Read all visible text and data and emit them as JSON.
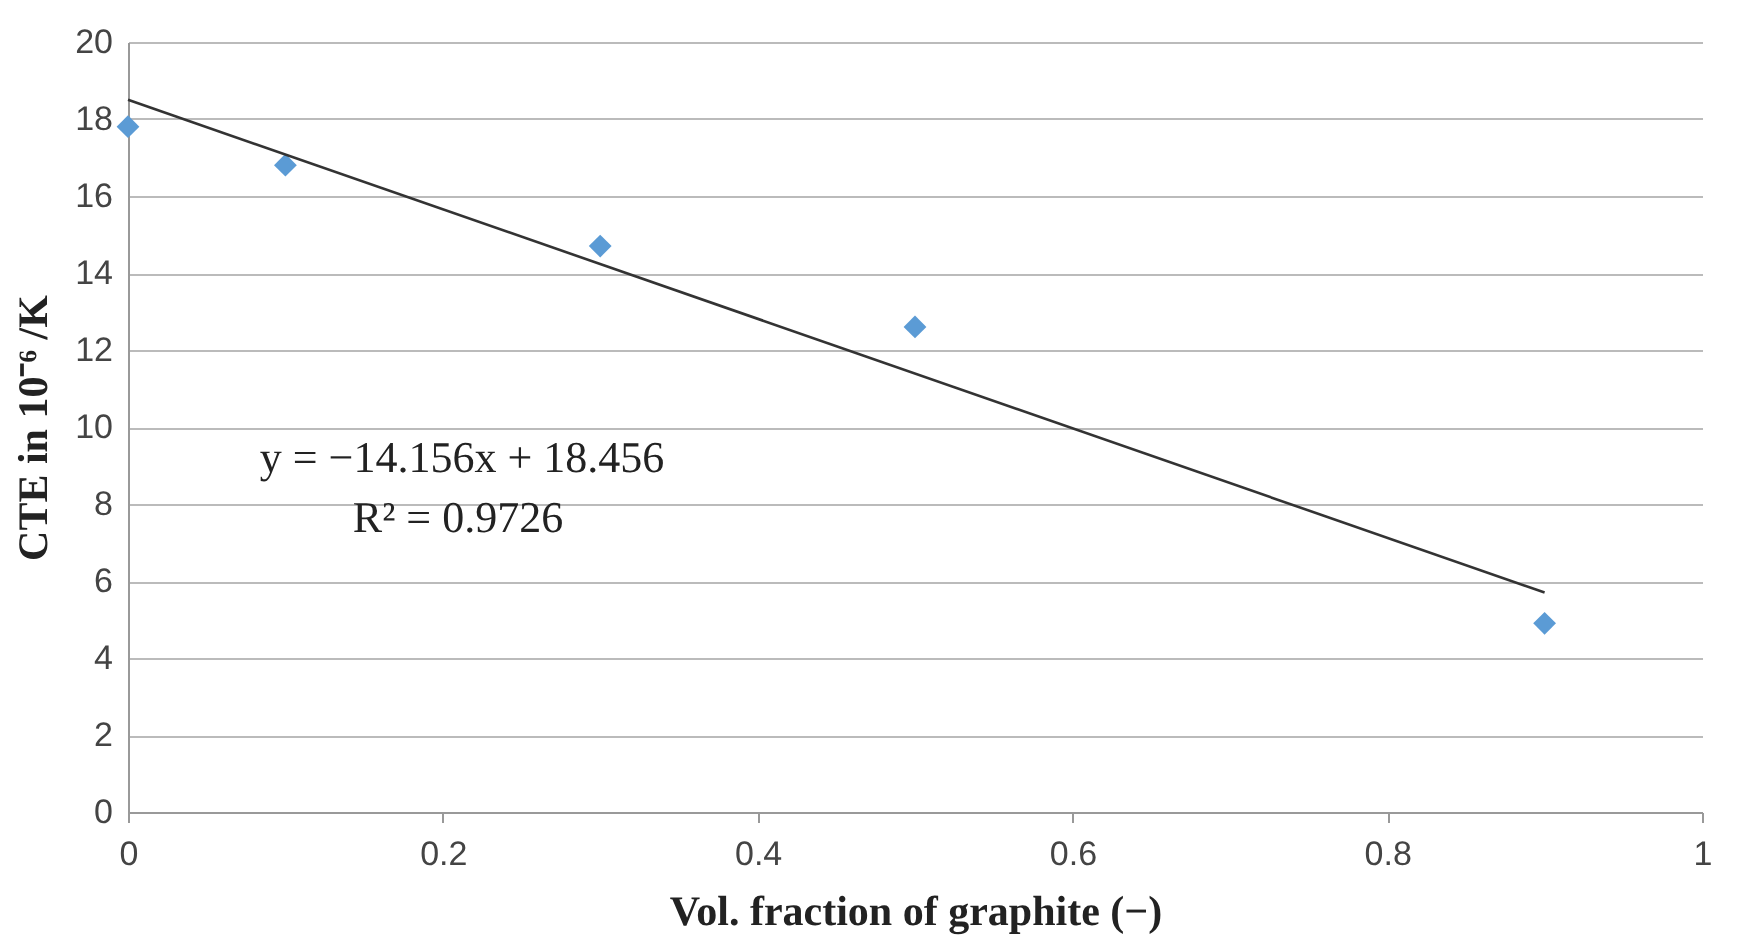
{
  "chart_data": {
    "type": "scatter",
    "xlabel": "Vol. fraction of graphite (−)",
    "ylabel": "CTE in 10⁻⁶ /K",
    "xlim": [
      0,
      1
    ],
    "xticks": [
      0,
      0.2,
      0.4,
      0.6,
      0.8,
      1
    ],
    "ylim": [
      0,
      20
    ],
    "yticks": [
      0,
      2,
      4,
      6,
      8,
      10,
      12,
      14,
      16,
      18,
      20
    ],
    "grid": "y",
    "series": [
      {
        "marker": "diamond",
        "color": "#5b9bd5",
        "x": [
          0,
          0.1,
          0.3,
          0.5,
          0.9
        ],
        "values": [
          17.8,
          16.8,
          14.7,
          12.6,
          4.9
        ]
      },
      {
        "type": "line",
        "color": "#333333",
        "x": [
          0,
          0.9
        ],
        "values": [
          18.5,
          5.7
        ]
      }
    ],
    "annotations": [
      "y = −14.156x + 18.456",
      "R² = 0.9726"
    ]
  }
}
